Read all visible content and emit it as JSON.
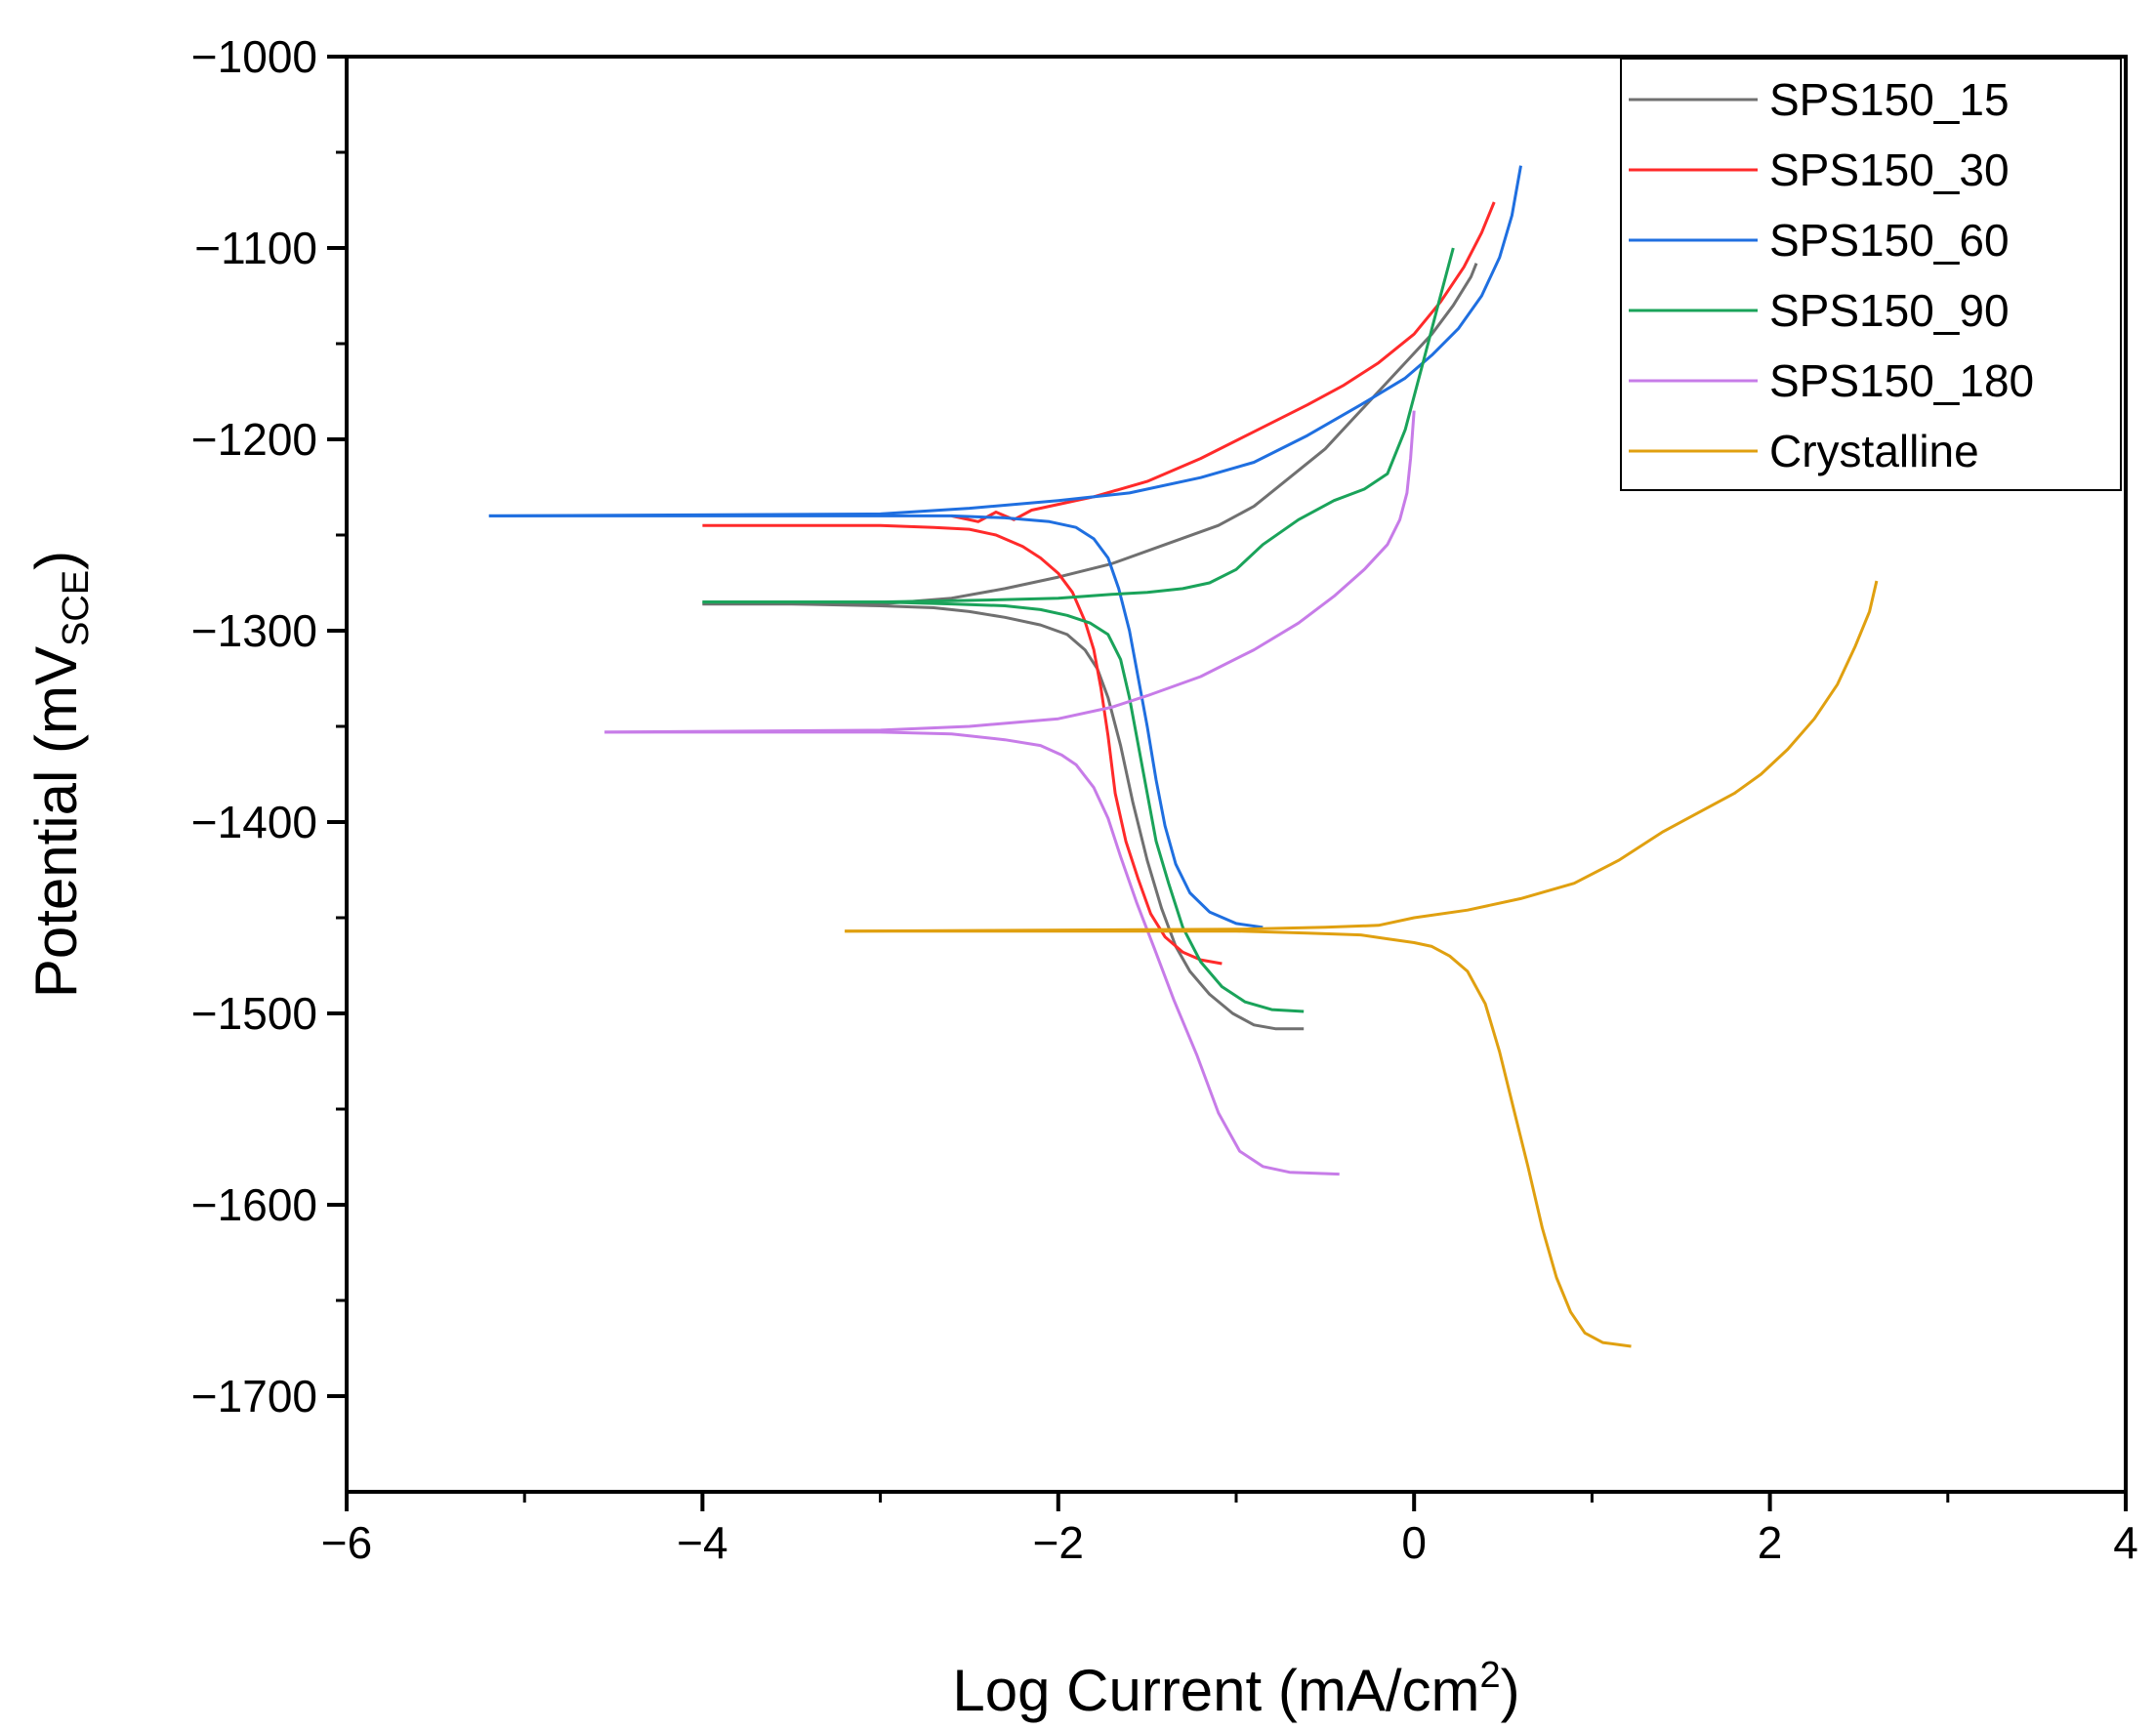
{
  "chart_data": {
    "type": "line",
    "title": "",
    "xlabel": {
      "main": "Log Current (mA/cm",
      "sup": "2",
      "end": ")"
    },
    "ylabel": {
      "main": "Potential (mV",
      "sub": "SCE",
      "end": ")"
    },
    "xlim": [
      -6,
      4
    ],
    "ylim": [
      -1750,
      -1000
    ],
    "xticks": [
      -6,
      -4,
      -2,
      0,
      2,
      4
    ],
    "xtick_labels": [
      "−6",
      "−4",
      "−2",
      "0",
      "2",
      "4"
    ],
    "yticks": [
      -1000,
      -1100,
      -1200,
      -1300,
      -1400,
      -1500,
      -1600,
      -1700
    ],
    "ytick_labels": [
      "−1000",
      "−1100",
      "−1200",
      "−1300",
      "−1400",
      "−1500",
      "−1600",
      "−1700"
    ],
    "grid": false,
    "legend_position": "top-right",
    "series": [
      {
        "name": "SPS150_15",
        "color": "#707070",
        "points": [
          [
            -4.0,
            -1286
          ],
          [
            -3.5,
            -1286
          ],
          [
            -3.0,
            -1287
          ],
          [
            -2.7,
            -1288
          ],
          [
            -2.5,
            -1290
          ],
          [
            -2.3,
            -1293
          ],
          [
            -2.1,
            -1297
          ],
          [
            -1.95,
            -1302
          ],
          [
            -1.85,
            -1310
          ],
          [
            -1.78,
            -1320
          ],
          [
            -1.72,
            -1335
          ],
          [
            -1.65,
            -1360
          ],
          [
            -1.58,
            -1390
          ],
          [
            -1.5,
            -1420
          ],
          [
            -1.42,
            -1445
          ],
          [
            -1.34,
            -1465
          ],
          [
            -1.26,
            -1478
          ],
          [
            -1.15,
            -1490
          ],
          [
            -1.02,
            -1500
          ],
          [
            -0.9,
            -1506
          ],
          [
            -0.78,
            -1508
          ],
          [
            -0.62,
            -1508
          ]
        ],
        "points_anodic": [
          [
            -4.0,
            -1286
          ],
          [
            -3.0,
            -1286
          ],
          [
            -2.6,
            -1283
          ],
          [
            -2.3,
            -1278
          ],
          [
            -2.0,
            -1272
          ],
          [
            -1.7,
            -1265
          ],
          [
            -1.4,
            -1255
          ],
          [
            -1.1,
            -1245
          ],
          [
            -0.9,
            -1235
          ],
          [
            -0.7,
            -1220
          ],
          [
            -0.5,
            -1205
          ],
          [
            -0.35,
            -1190
          ],
          [
            -0.2,
            -1175
          ],
          [
            -0.05,
            -1160
          ],
          [
            0.1,
            -1145
          ],
          [
            0.22,
            -1130
          ],
          [
            0.32,
            -1115
          ],
          [
            0.35,
            -1108
          ]
        ]
      },
      {
        "name": "SPS150_30",
        "color": "#ff2a2a",
        "points": [
          [
            -4.0,
            -1245
          ],
          [
            -3.5,
            -1245
          ],
          [
            -3.0,
            -1245
          ],
          [
            -2.7,
            -1246
          ],
          [
            -2.5,
            -1247
          ],
          [
            -2.35,
            -1250
          ],
          [
            -2.2,
            -1256
          ],
          [
            -2.1,
            -1262
          ],
          [
            -2.0,
            -1270
          ],
          [
            -1.92,
            -1280
          ],
          [
            -1.85,
            -1295
          ],
          [
            -1.8,
            -1310
          ],
          [
            -1.76,
            -1330
          ],
          [
            -1.72,
            -1355
          ],
          [
            -1.68,
            -1385
          ],
          [
            -1.62,
            -1410
          ],
          [
            -1.55,
            -1430
          ],
          [
            -1.48,
            -1448
          ],
          [
            -1.4,
            -1460
          ],
          [
            -1.3,
            -1468
          ],
          [
            -1.2,
            -1472
          ],
          [
            -1.08,
            -1474
          ]
        ],
        "points_anodic": [
          [
            -2.6,
            -1240
          ],
          [
            -2.45,
            -1243
          ],
          [
            -2.35,
            -1238
          ],
          [
            -2.25,
            -1242
          ],
          [
            -2.15,
            -1237
          ],
          [
            -2.0,
            -1234
          ],
          [
            -1.8,
            -1230
          ],
          [
            -1.5,
            -1222
          ],
          [
            -1.2,
            -1210
          ],
          [
            -0.9,
            -1196
          ],
          [
            -0.6,
            -1182
          ],
          [
            -0.4,
            -1172
          ],
          [
            -0.2,
            -1160
          ],
          [
            0.0,
            -1145
          ],
          [
            0.15,
            -1128
          ],
          [
            0.28,
            -1110
          ],
          [
            0.38,
            -1092
          ],
          [
            0.45,
            -1076
          ]
        ]
      },
      {
        "name": "SPS150_60",
        "color": "#1f6fe0",
        "points": [
          [
            -5.2,
            -1240
          ],
          [
            -4.5,
            -1240
          ],
          [
            -4.0,
            -1240
          ],
          [
            -3.5,
            -1240
          ],
          [
            -3.0,
            -1240
          ],
          [
            -2.6,
            -1240
          ],
          [
            -2.3,
            -1241
          ],
          [
            -2.05,
            -1243
          ],
          [
            -1.9,
            -1246
          ],
          [
            -1.8,
            -1252
          ],
          [
            -1.72,
            -1262
          ],
          [
            -1.66,
            -1278
          ],
          [
            -1.6,
            -1300
          ],
          [
            -1.55,
            -1325
          ],
          [
            -1.5,
            -1350
          ],
          [
            -1.45,
            -1378
          ],
          [
            -1.4,
            -1402
          ],
          [
            -1.34,
            -1422
          ],
          [
            -1.26,
            -1437
          ],
          [
            -1.15,
            -1447
          ],
          [
            -1.0,
            -1453
          ],
          [
            -0.85,
            -1455
          ]
        ],
        "points_anodic": [
          [
            -5.2,
            -1240
          ],
          [
            -3.0,
            -1239
          ],
          [
            -2.5,
            -1236
          ],
          [
            -2.0,
            -1232
          ],
          [
            -1.6,
            -1228
          ],
          [
            -1.2,
            -1220
          ],
          [
            -0.9,
            -1212
          ],
          [
            -0.6,
            -1198
          ],
          [
            -0.3,
            -1182
          ],
          [
            -0.05,
            -1168
          ],
          [
            0.1,
            -1156
          ],
          [
            0.25,
            -1142
          ],
          [
            0.38,
            -1125
          ],
          [
            0.48,
            -1105
          ],
          [
            0.55,
            -1083
          ],
          [
            0.6,
            -1057
          ]
        ]
      },
      {
        "name": "SPS150_90",
        "color": "#1aa35a",
        "points": [
          [
            -4.0,
            -1285
          ],
          [
            -3.5,
            -1285
          ],
          [
            -3.0,
            -1285
          ],
          [
            -2.6,
            -1286
          ],
          [
            -2.3,
            -1287
          ],
          [
            -2.1,
            -1289
          ],
          [
            -1.95,
            -1292
          ],
          [
            -1.82,
            -1296
          ],
          [
            -1.72,
            -1302
          ],
          [
            -1.65,
            -1315
          ],
          [
            -1.6,
            -1335
          ],
          [
            -1.55,
            -1360
          ],
          [
            -1.5,
            -1385
          ],
          [
            -1.45,
            -1410
          ],
          [
            -1.38,
            -1432
          ],
          [
            -1.3,
            -1455
          ],
          [
            -1.2,
            -1473
          ],
          [
            -1.08,
            -1486
          ],
          [
            -0.95,
            -1494
          ],
          [
            -0.8,
            -1498
          ],
          [
            -0.62,
            -1499
          ]
        ],
        "points_anodic": [
          [
            -4.0,
            -1285
          ],
          [
            -3.0,
            -1285
          ],
          [
            -2.4,
            -1284
          ],
          [
            -2.0,
            -1283
          ],
          [
            -1.7,
            -1281
          ],
          [
            -1.5,
            -1280
          ],
          [
            -1.3,
            -1278
          ],
          [
            -1.15,
            -1275
          ],
          [
            -1.0,
            -1268
          ],
          [
            -0.85,
            -1255
          ],
          [
            -0.65,
            -1242
          ],
          [
            -0.45,
            -1232
          ],
          [
            -0.28,
            -1226
          ],
          [
            -0.15,
            -1218
          ],
          [
            -0.05,
            -1195
          ],
          [
            0.05,
            -1160
          ],
          [
            0.14,
            -1128
          ],
          [
            0.22,
            -1100
          ]
        ]
      },
      {
        "name": "SPS150_180",
        "color": "#c77ce8",
        "points": [
          [
            -4.55,
            -1353
          ],
          [
            -4.0,
            -1353
          ],
          [
            -3.5,
            -1353
          ],
          [
            -3.0,
            -1353
          ],
          [
            -2.6,
            -1354
          ],
          [
            -2.3,
            -1357
          ],
          [
            -2.1,
            -1360
          ],
          [
            -1.98,
            -1365
          ],
          [
            -1.9,
            -1370
          ],
          [
            -1.8,
            -1382
          ],
          [
            -1.72,
            -1398
          ],
          [
            -1.65,
            -1418
          ],
          [
            -1.56,
            -1442
          ],
          [
            -1.46,
            -1466
          ],
          [
            -1.35,
            -1493
          ],
          [
            -1.22,
            -1522
          ],
          [
            -1.1,
            -1552
          ],
          [
            -0.98,
            -1572
          ],
          [
            -0.85,
            -1580
          ],
          [
            -0.7,
            -1583
          ],
          [
            -0.42,
            -1584
          ]
        ],
        "points_anodic": [
          [
            -4.55,
            -1353
          ],
          [
            -3.0,
            -1352
          ],
          [
            -2.5,
            -1350
          ],
          [
            -2.0,
            -1346
          ],
          [
            -1.7,
            -1340
          ],
          [
            -1.5,
            -1334
          ],
          [
            -1.2,
            -1324
          ],
          [
            -0.9,
            -1310
          ],
          [
            -0.65,
            -1296
          ],
          [
            -0.45,
            -1282
          ],
          [
            -0.28,
            -1268
          ],
          [
            -0.15,
            -1255
          ],
          [
            -0.08,
            -1242
          ],
          [
            -0.04,
            -1228
          ],
          [
            -0.02,
            -1210
          ],
          [
            0.0,
            -1185
          ]
        ]
      },
      {
        "name": "Crystalline",
        "color": "#e0a010",
        "points": [
          [
            -3.2,
            -1457
          ],
          [
            -2.5,
            -1457
          ],
          [
            -2.0,
            -1457
          ],
          [
            -1.5,
            -1457
          ],
          [
            -1.0,
            -1457
          ],
          [
            -0.6,
            -1458
          ],
          [
            -0.3,
            -1459
          ],
          [
            -0.15,
            -1461
          ],
          [
            0.0,
            -1463
          ],
          [
            0.1,
            -1465
          ],
          [
            0.2,
            -1470
          ],
          [
            0.3,
            -1478
          ],
          [
            0.4,
            -1495
          ],
          [
            0.48,
            -1520
          ],
          [
            0.56,
            -1550
          ],
          [
            0.64,
            -1580
          ],
          [
            0.72,
            -1612
          ],
          [
            0.8,
            -1638
          ],
          [
            0.88,
            -1656
          ],
          [
            0.96,
            -1667
          ],
          [
            1.06,
            -1672
          ],
          [
            1.22,
            -1674
          ]
        ],
        "points_anodic": [
          [
            -3.2,
            -1457
          ],
          [
            -1.0,
            -1456
          ],
          [
            -0.5,
            -1455
          ],
          [
            -0.2,
            -1454
          ],
          [
            0.0,
            -1450
          ],
          [
            0.3,
            -1446
          ],
          [
            0.6,
            -1440
          ],
          [
            0.9,
            -1432
          ],
          [
            1.15,
            -1420
          ],
          [
            1.4,
            -1405
          ],
          [
            1.6,
            -1395
          ],
          [
            1.8,
            -1385
          ],
          [
            1.95,
            -1375
          ],
          [
            2.1,
            -1362
          ],
          [
            2.25,
            -1346
          ],
          [
            2.38,
            -1328
          ],
          [
            2.48,
            -1308
          ],
          [
            2.56,
            -1290
          ],
          [
            2.6,
            -1274
          ]
        ]
      }
    ]
  }
}
